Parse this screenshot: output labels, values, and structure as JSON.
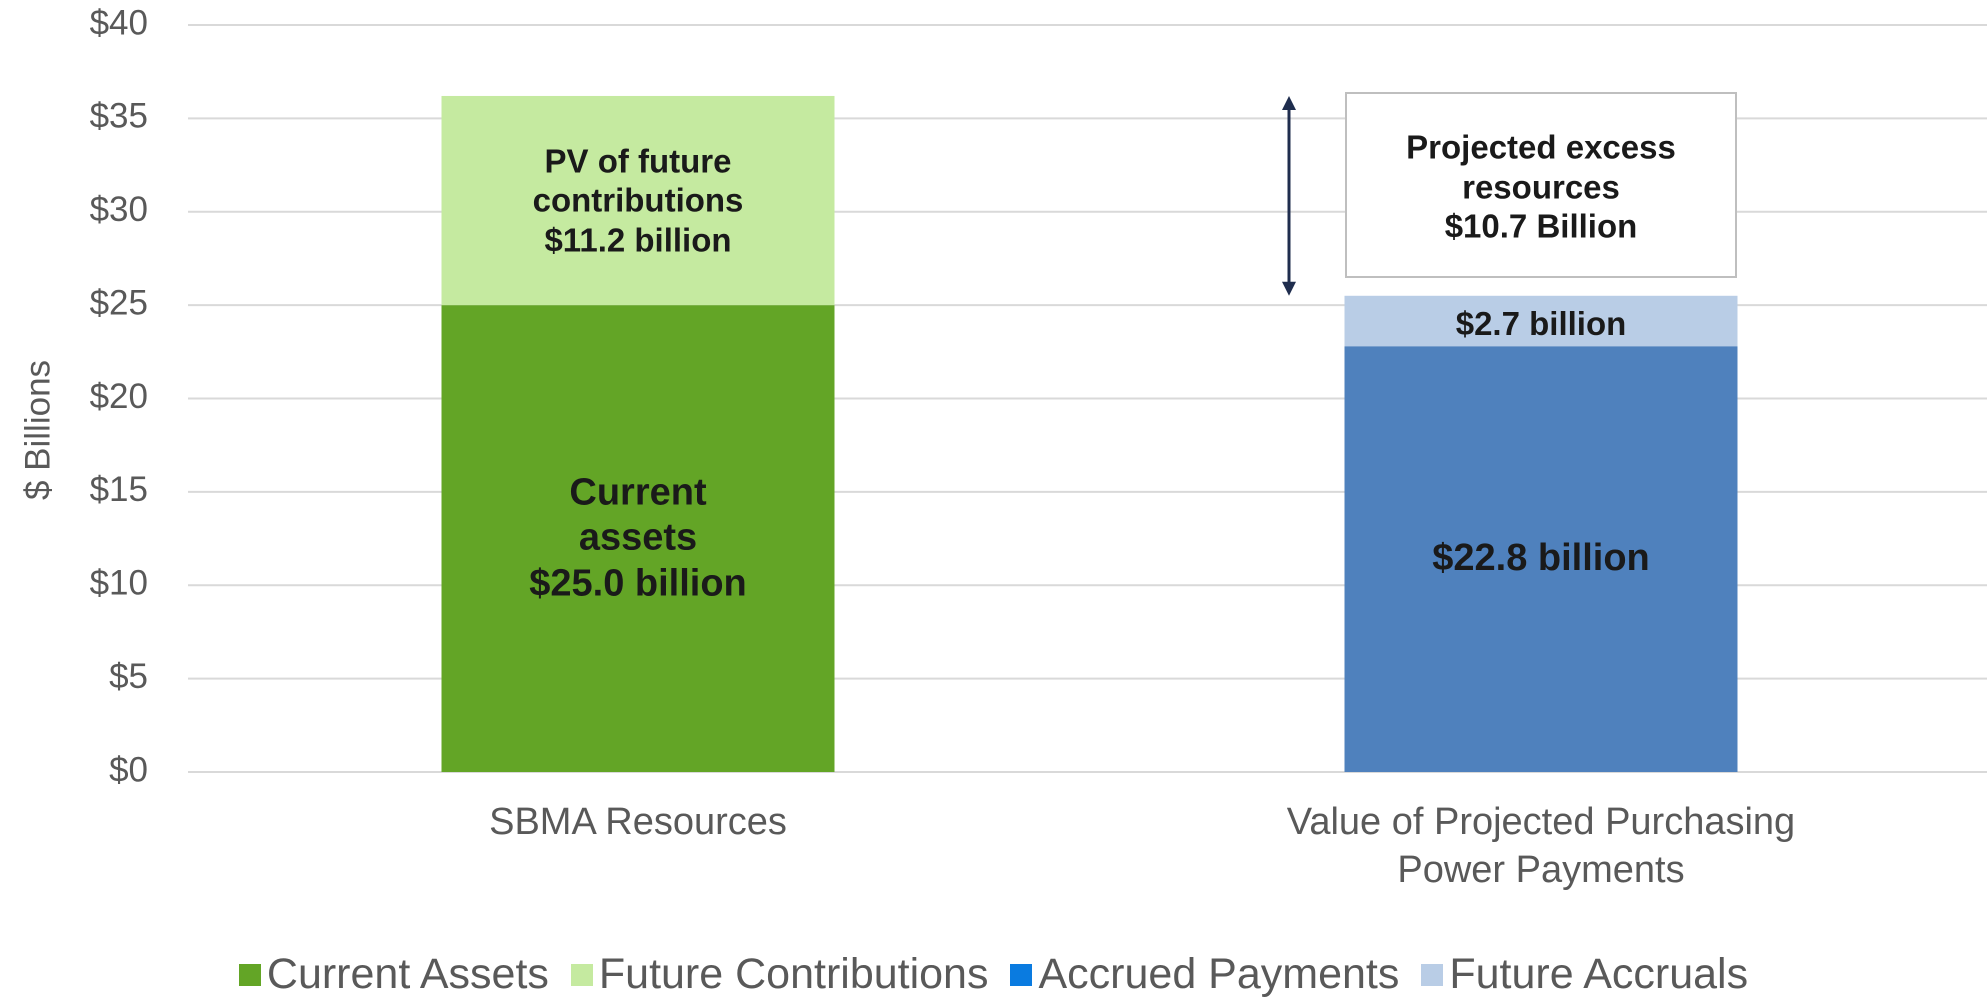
{
  "chart_data": {
    "type": "stacked_bar",
    "y_label": "$ Billions",
    "categories": [
      "SBMA Resources",
      "Value of Projected Purchasing Power Payments"
    ],
    "series": [
      {
        "name": "Current Assets",
        "color": "#63a526",
        "values": [
          25.0,
          null
        ],
        "value_labels": [
          "Current\nassets\n$25.0 billion",
          null
        ]
      },
      {
        "name": "Future Contributions",
        "color": "#c5eaa0",
        "values": [
          11.2,
          null
        ],
        "value_labels": [
          "PV of future\ncontributions\n$11.2 billion",
          null
        ]
      },
      {
        "name": "Accrued Payments",
        "color": "#4f81bd",
        "legend_color": "#0a7be0",
        "values": [
          null,
          22.8
        ],
        "value_labels": [
          null,
          "$22.8 billion"
        ]
      },
      {
        "name": "Future Accruals",
        "color": "#b9cde6",
        "values": [
          null,
          2.7
        ],
        "value_labels": [
          null,
          "$2.7 billion"
        ]
      }
    ],
    "annotations": [
      {
        "text": "Projected excess resources\n$10.7 Billion",
        "value": 10.7
      }
    ],
    "ylim": [
      0,
      40
    ],
    "yticks": [
      {
        "value": 0,
        "label": "$0"
      },
      {
        "value": 5,
        "label": "$5"
      },
      {
        "value": 10,
        "label": "$10"
      },
      {
        "value": 15,
        "label": "$15"
      },
      {
        "value": 20,
        "label": "$20"
      },
      {
        "value": 25,
        "label": "$25"
      },
      {
        "value": 30,
        "label": "$30"
      },
      {
        "value": 35,
        "label": "$35"
      },
      {
        "value": 40,
        "label": "$40"
      }
    ],
    "grid": true,
    "legend": "bottom"
  }
}
